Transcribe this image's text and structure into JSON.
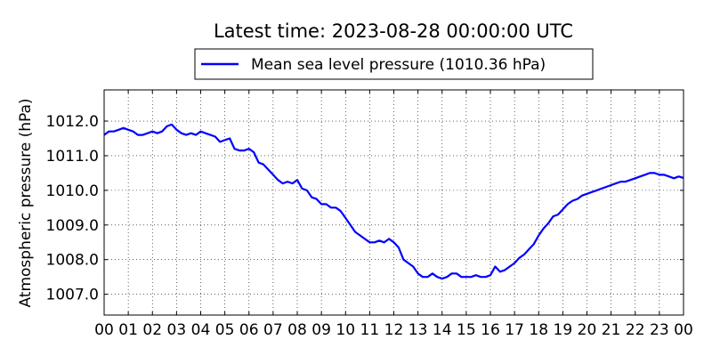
{
  "chart_data": {
    "type": "line",
    "title": "Latest time: 2023-08-28 00:00:00 UTC",
    "ylabel": "Atmospheric pressure (hPa)",
    "xlabel": "",
    "xlim": [
      0,
      24
    ],
    "ylim": [
      1006.4,
      1012.9
    ],
    "x_ticks": [
      "00",
      "01",
      "02",
      "03",
      "04",
      "05",
      "06",
      "07",
      "08",
      "09",
      "10",
      "11",
      "12",
      "13",
      "14",
      "15",
      "16",
      "17",
      "18",
      "19",
      "20",
      "21",
      "22",
      "23",
      "00"
    ],
    "y_ticks": [
      1007.0,
      1008.0,
      1009.0,
      1010.0,
      1011.0,
      1012.0
    ],
    "grid": true,
    "legend_position": "top-center",
    "series": [
      {
        "name": "Mean sea level pressure (1010.36 hPa)",
        "color": "#0000ff",
        "x": [
          0.0,
          0.2,
          0.4,
          0.6,
          0.8,
          1.0,
          1.2,
          1.4,
          1.6,
          1.8,
          2.0,
          2.2,
          2.4,
          2.6,
          2.8,
          3.0,
          3.2,
          3.4,
          3.6,
          3.8,
          4.0,
          4.2,
          4.4,
          4.6,
          4.8,
          5.0,
          5.2,
          5.4,
          5.6,
          5.8,
          6.0,
          6.2,
          6.4,
          6.6,
          6.8,
          7.0,
          7.2,
          7.4,
          7.6,
          7.8,
          8.0,
          8.2,
          8.4,
          8.6,
          8.8,
          9.0,
          9.2,
          9.4,
          9.6,
          9.8,
          10.0,
          10.2,
          10.4,
          10.6,
          10.8,
          11.0,
          11.2,
          11.4,
          11.6,
          11.8,
          12.0,
          12.2,
          12.4,
          12.6,
          12.8,
          13.0,
          13.2,
          13.4,
          13.6,
          13.8,
          14.0,
          14.2,
          14.4,
          14.6,
          14.8,
          15.0,
          15.2,
          15.4,
          15.6,
          15.8,
          16.0,
          16.2,
          16.4,
          16.6,
          16.8,
          17.0,
          17.2,
          17.4,
          17.6,
          17.8,
          18.0,
          18.2,
          18.4,
          18.6,
          18.8,
          19.0,
          19.2,
          19.4,
          19.6,
          19.8,
          20.0,
          20.2,
          20.4,
          20.6,
          20.8,
          21.0,
          21.2,
          21.4,
          21.6,
          21.8,
          22.0,
          22.2,
          22.4,
          22.6,
          22.8,
          23.0,
          23.2,
          23.4,
          23.6,
          23.8,
          24.0
        ],
        "y": [
          1011.6,
          1011.7,
          1011.7,
          1011.75,
          1011.8,
          1011.75,
          1011.7,
          1011.6,
          1011.6,
          1011.65,
          1011.7,
          1011.65,
          1011.7,
          1011.85,
          1011.9,
          1011.75,
          1011.65,
          1011.6,
          1011.65,
          1011.6,
          1011.7,
          1011.65,
          1011.6,
          1011.55,
          1011.4,
          1011.45,
          1011.5,
          1011.2,
          1011.15,
          1011.15,
          1011.2,
          1011.1,
          1010.8,
          1010.75,
          1010.6,
          1010.45,
          1010.3,
          1010.2,
          1010.25,
          1010.2,
          1010.3,
          1010.05,
          1010.0,
          1009.8,
          1009.75,
          1009.6,
          1009.6,
          1009.5,
          1009.5,
          1009.4,
          1009.2,
          1009.0,
          1008.8,
          1008.7,
          1008.6,
          1008.5,
          1008.5,
          1008.55,
          1008.5,
          1008.6,
          1008.5,
          1008.35,
          1008.0,
          1007.9,
          1007.8,
          1007.6,
          1007.5,
          1007.5,
          1007.6,
          1007.5,
          1007.45,
          1007.5,
          1007.6,
          1007.6,
          1007.5,
          1007.5,
          1007.5,
          1007.55,
          1007.5,
          1007.5,
          1007.55,
          1007.8,
          1007.65,
          1007.7,
          1007.8,
          1007.9,
          1008.05,
          1008.15,
          1008.3,
          1008.45,
          1008.7,
          1008.9,
          1009.05,
          1009.25,
          1009.3,
          1009.45,
          1009.6,
          1009.7,
          1009.75,
          1009.85,
          1009.9,
          1009.95,
          1010.0,
          1010.05,
          1010.1,
          1010.15,
          1010.2,
          1010.25,
          1010.25,
          1010.3,
          1010.35,
          1010.4,
          1010.45,
          1010.5,
          1010.5,
          1010.45,
          1010.45,
          1010.4,
          1010.35,
          1010.4,
          1010.36
        ]
      }
    ]
  }
}
